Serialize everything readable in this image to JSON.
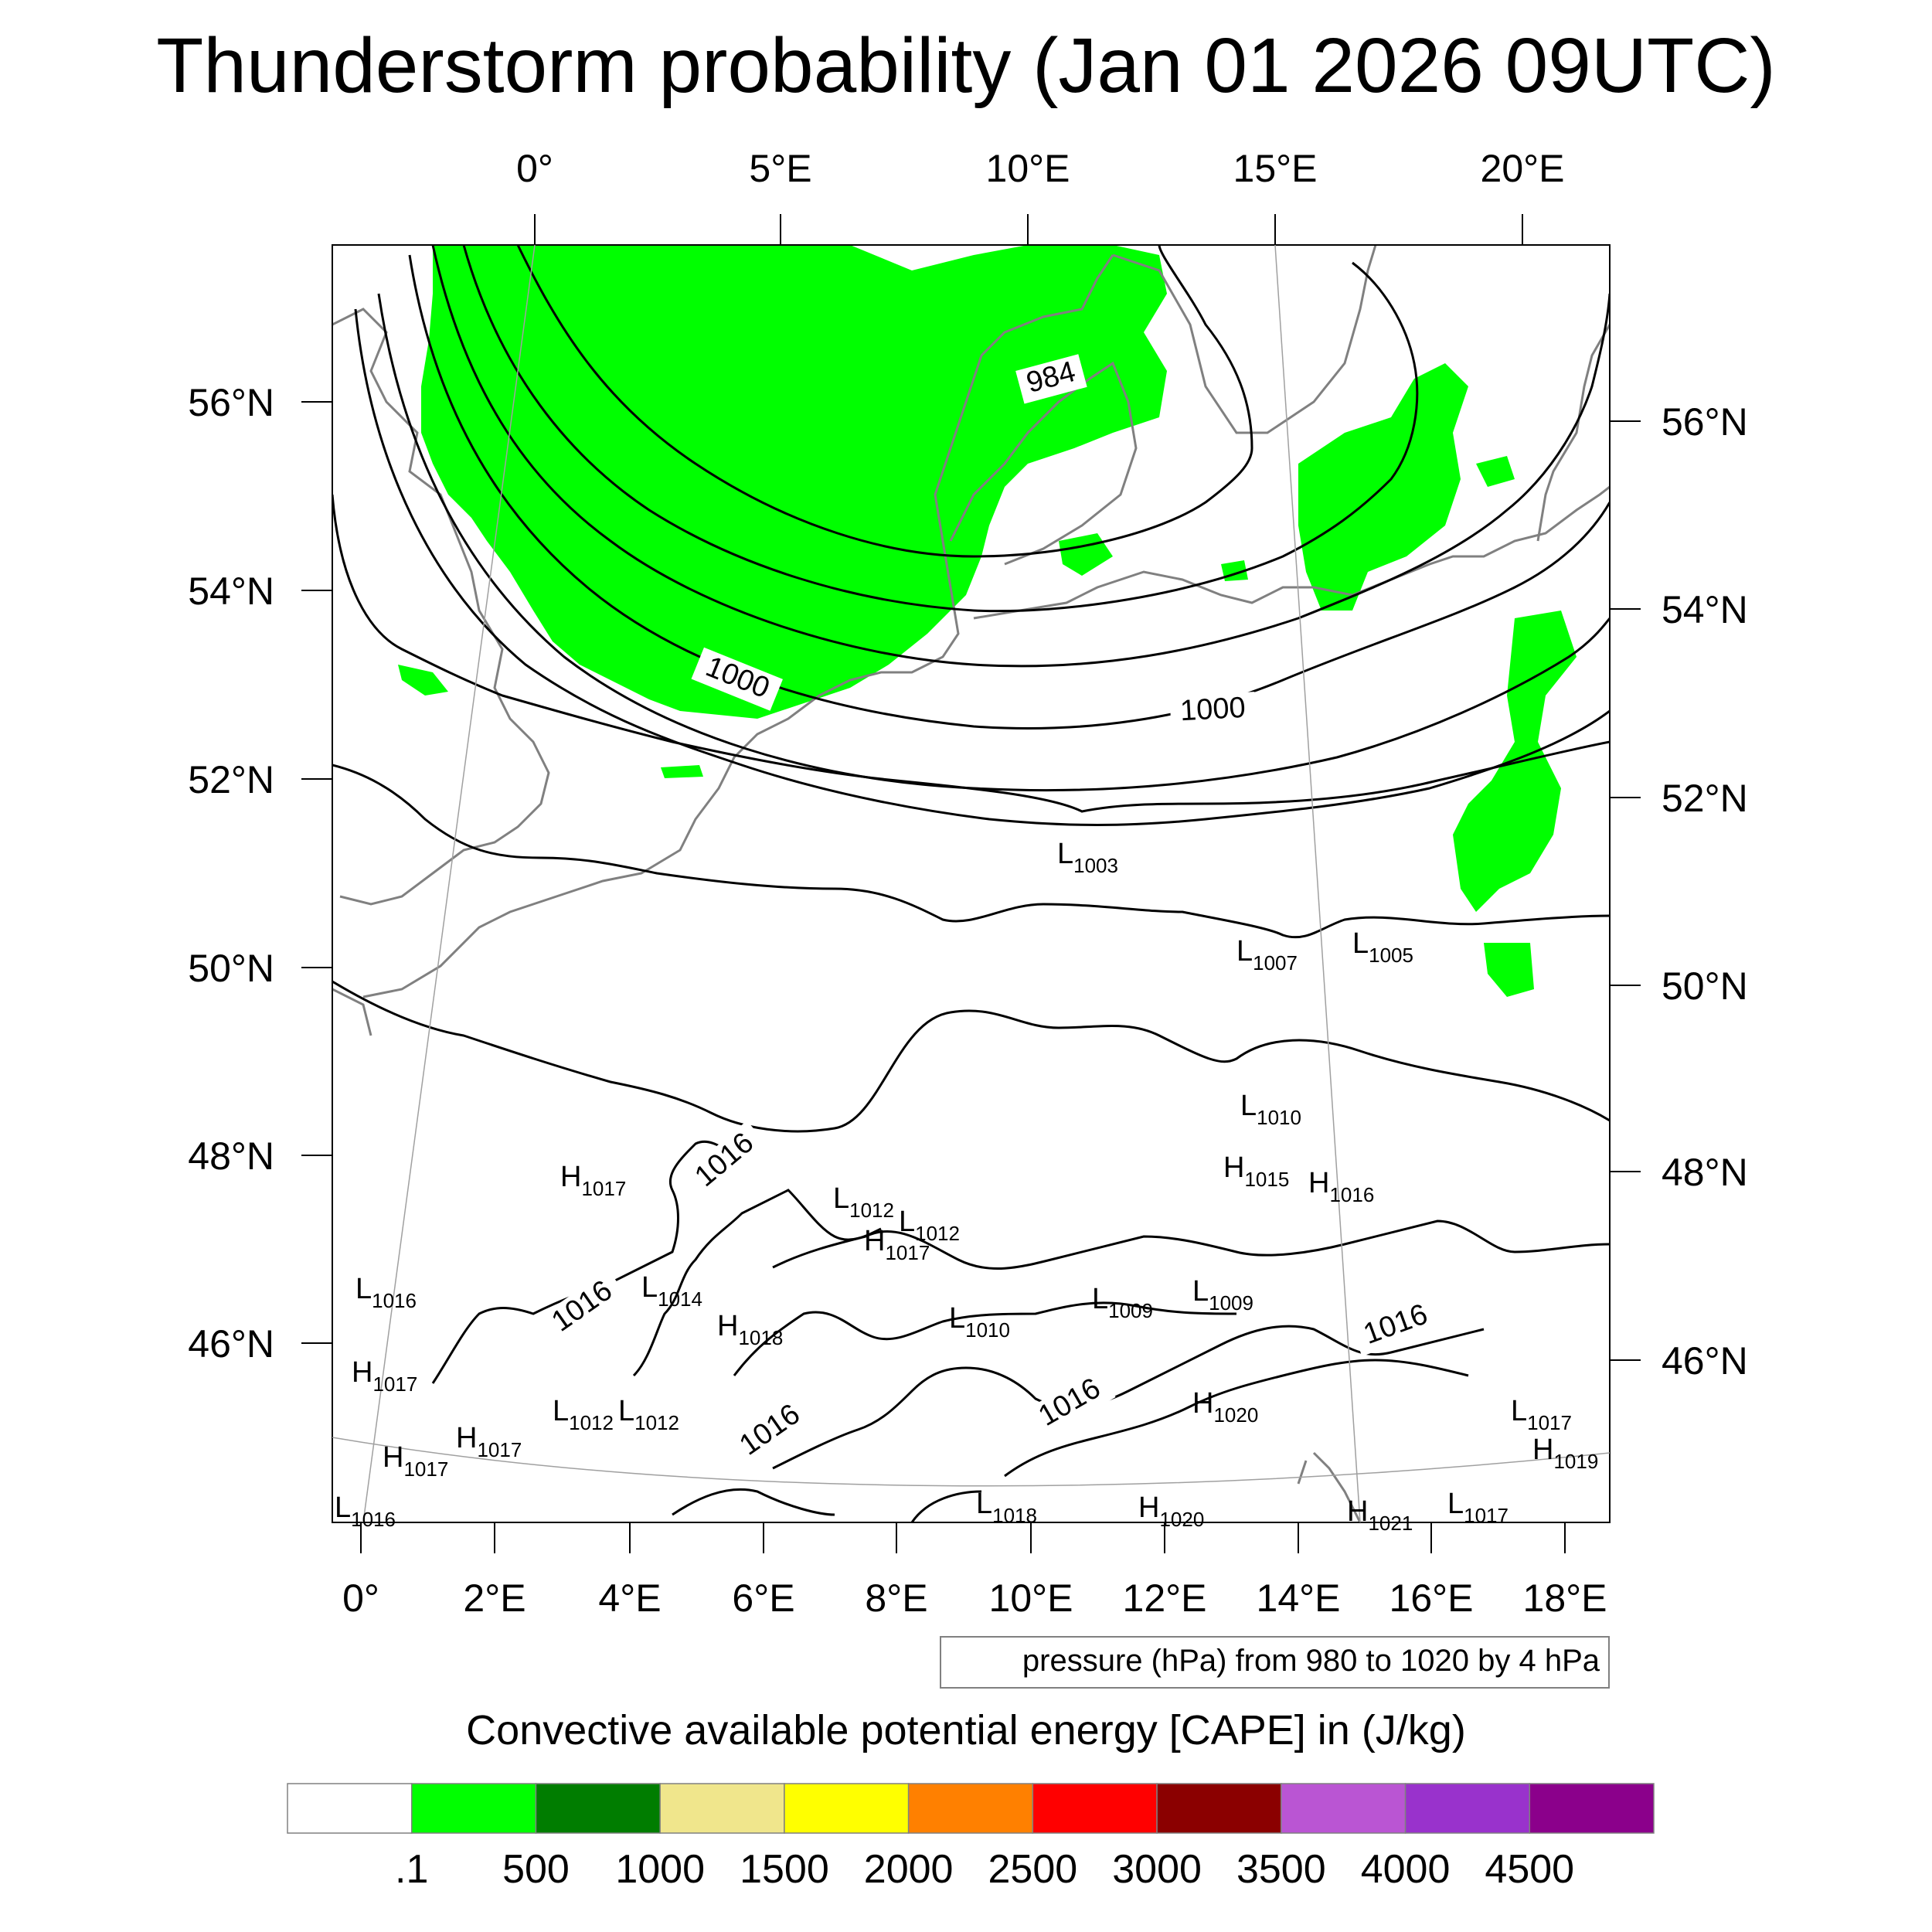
{
  "title": "Thunderstorm probability (Jan 01 2026 09UTC)",
  "top_lon_labels": [
    "0°",
    "5°E",
    "10°E",
    "15°E",
    "20°E"
  ],
  "bottom_lon_labels": [
    "0°",
    "2°E",
    "4°E",
    "6°E",
    "8°E",
    "10°E",
    "12°E",
    "14°E",
    "16°E",
    "18°E"
  ],
  "left_lat_labels": [
    "56°N",
    "54°N",
    "52°N",
    "50°N",
    "48°N",
    "46°N"
  ],
  "right_lat_labels": [
    "56°N",
    "54°N",
    "52°N",
    "50°N",
    "48°N",
    "46°N"
  ],
  "contour_labels": [
    {
      "text": "984"
    },
    {
      "text": "1000"
    },
    {
      "text": "1000"
    },
    {
      "text": "1016"
    },
    {
      "text": "1016"
    },
    {
      "text": "1016"
    },
    {
      "text": "1016"
    },
    {
      "text": "1016"
    }
  ],
  "pressure_centers": [
    {
      "kind": "L",
      "value": "1003"
    },
    {
      "kind": "L",
      "value": "1007"
    },
    {
      "kind": "L",
      "value": "1005"
    },
    {
      "kind": "L",
      "value": "1010"
    },
    {
      "kind": "H",
      "value": "1015"
    },
    {
      "kind": "H",
      "value": "1016"
    },
    {
      "kind": "H",
      "value": "1017"
    },
    {
      "kind": "L",
      "value": "1012"
    },
    {
      "kind": "L",
      "value": "1012"
    },
    {
      "kind": "H",
      "value": "1017"
    },
    {
      "kind": "L",
      "value": "1016"
    },
    {
      "kind": "L",
      "value": "1014"
    },
    {
      "kind": "H",
      "value": "1018"
    },
    {
      "kind": "L",
      "value": "1010"
    },
    {
      "kind": "L",
      "value": "1009"
    },
    {
      "kind": "L",
      "value": "1009"
    },
    {
      "kind": "H",
      "value": "1017"
    },
    {
      "kind": "L",
      "value": "1012"
    },
    {
      "kind": "L",
      "value": "1012"
    },
    {
      "kind": "H",
      "value": "1017"
    },
    {
      "kind": "H",
      "value": "1017"
    },
    {
      "kind": "H",
      "value": "1020"
    },
    {
      "kind": "L",
      "value": "1017"
    },
    {
      "kind": "H",
      "value": "1019"
    },
    {
      "kind": "L",
      "value": "1016"
    },
    {
      "kind": "L",
      "value": "1018"
    },
    {
      "kind": "H",
      "value": "1020"
    },
    {
      "kind": "L",
      "value": "1017"
    },
    {
      "kind": "H",
      "value": "1021"
    }
  ],
  "pressure_note": "pressure (hPa) from 980 to 1020 by 4 hPa",
  "colorbar": {
    "title": "Convective available potential energy [CAPE] in (J/kg)",
    "colors": [
      "#ffffff",
      "#00ff00",
      "#007d00",
      "#f0e68c",
      "#ffff00",
      "#ff8000",
      "#ff0000",
      "#8b0000",
      "#ba55d3",
      "#9932cc",
      "#8b008b"
    ],
    "labels": [
      ".1",
      "500",
      "1000",
      "1500",
      "2000",
      "2500",
      "3000",
      "3500",
      "4000",
      "4500"
    ]
  },
  "cape_fill_color": "#00ff00"
}
